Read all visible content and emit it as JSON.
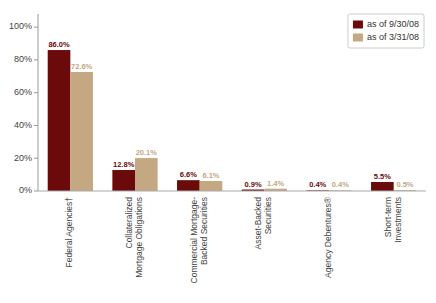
{
  "chart_data": {
    "type": "bar",
    "categories": [
      "Federal Agencies†",
      "Collateralized\nMortgage Obligations",
      "Commercial Mortgage-\nBacked Securities",
      "Asset-Backed\nSecurities",
      "Agency Debentures®",
      "Short-term\nInvestments"
    ],
    "series": [
      {
        "name": "as of 9/30/08",
        "color": "#6B0A0A",
        "values": [
          86.0,
          12.8,
          6.6,
          0.9,
          0.4,
          5.5
        ],
        "value_labels": [
          "86.0%",
          "12.8%",
          "6.6%",
          "0.9%",
          "0.4%",
          "5.5%"
        ]
      },
      {
        "name": "as of 3/31/08",
        "color": "#C4A882",
        "values": [
          72.6,
          20.1,
          6.1,
          1.4,
          0.4,
          0.5
        ],
        "value_labels": [
          "72.6%",
          "20.1%",
          "6.1%",
          "1.4%",
          "0.4%",
          "0.5%"
        ]
      }
    ],
    "ylim": [
      0,
      108
    ],
    "yticks": [
      {
        "value": 0,
        "label": "0%"
      },
      {
        "value": 20,
        "label": "20%"
      },
      {
        "value": 40,
        "label": "40%"
      },
      {
        "value": 60,
        "label": "60%"
      },
      {
        "value": 80,
        "label": "80%"
      },
      {
        "value": 100,
        "label": "100%"
      }
    ],
    "grid": false,
    "legend": "upper right",
    "data_labels": true
  }
}
